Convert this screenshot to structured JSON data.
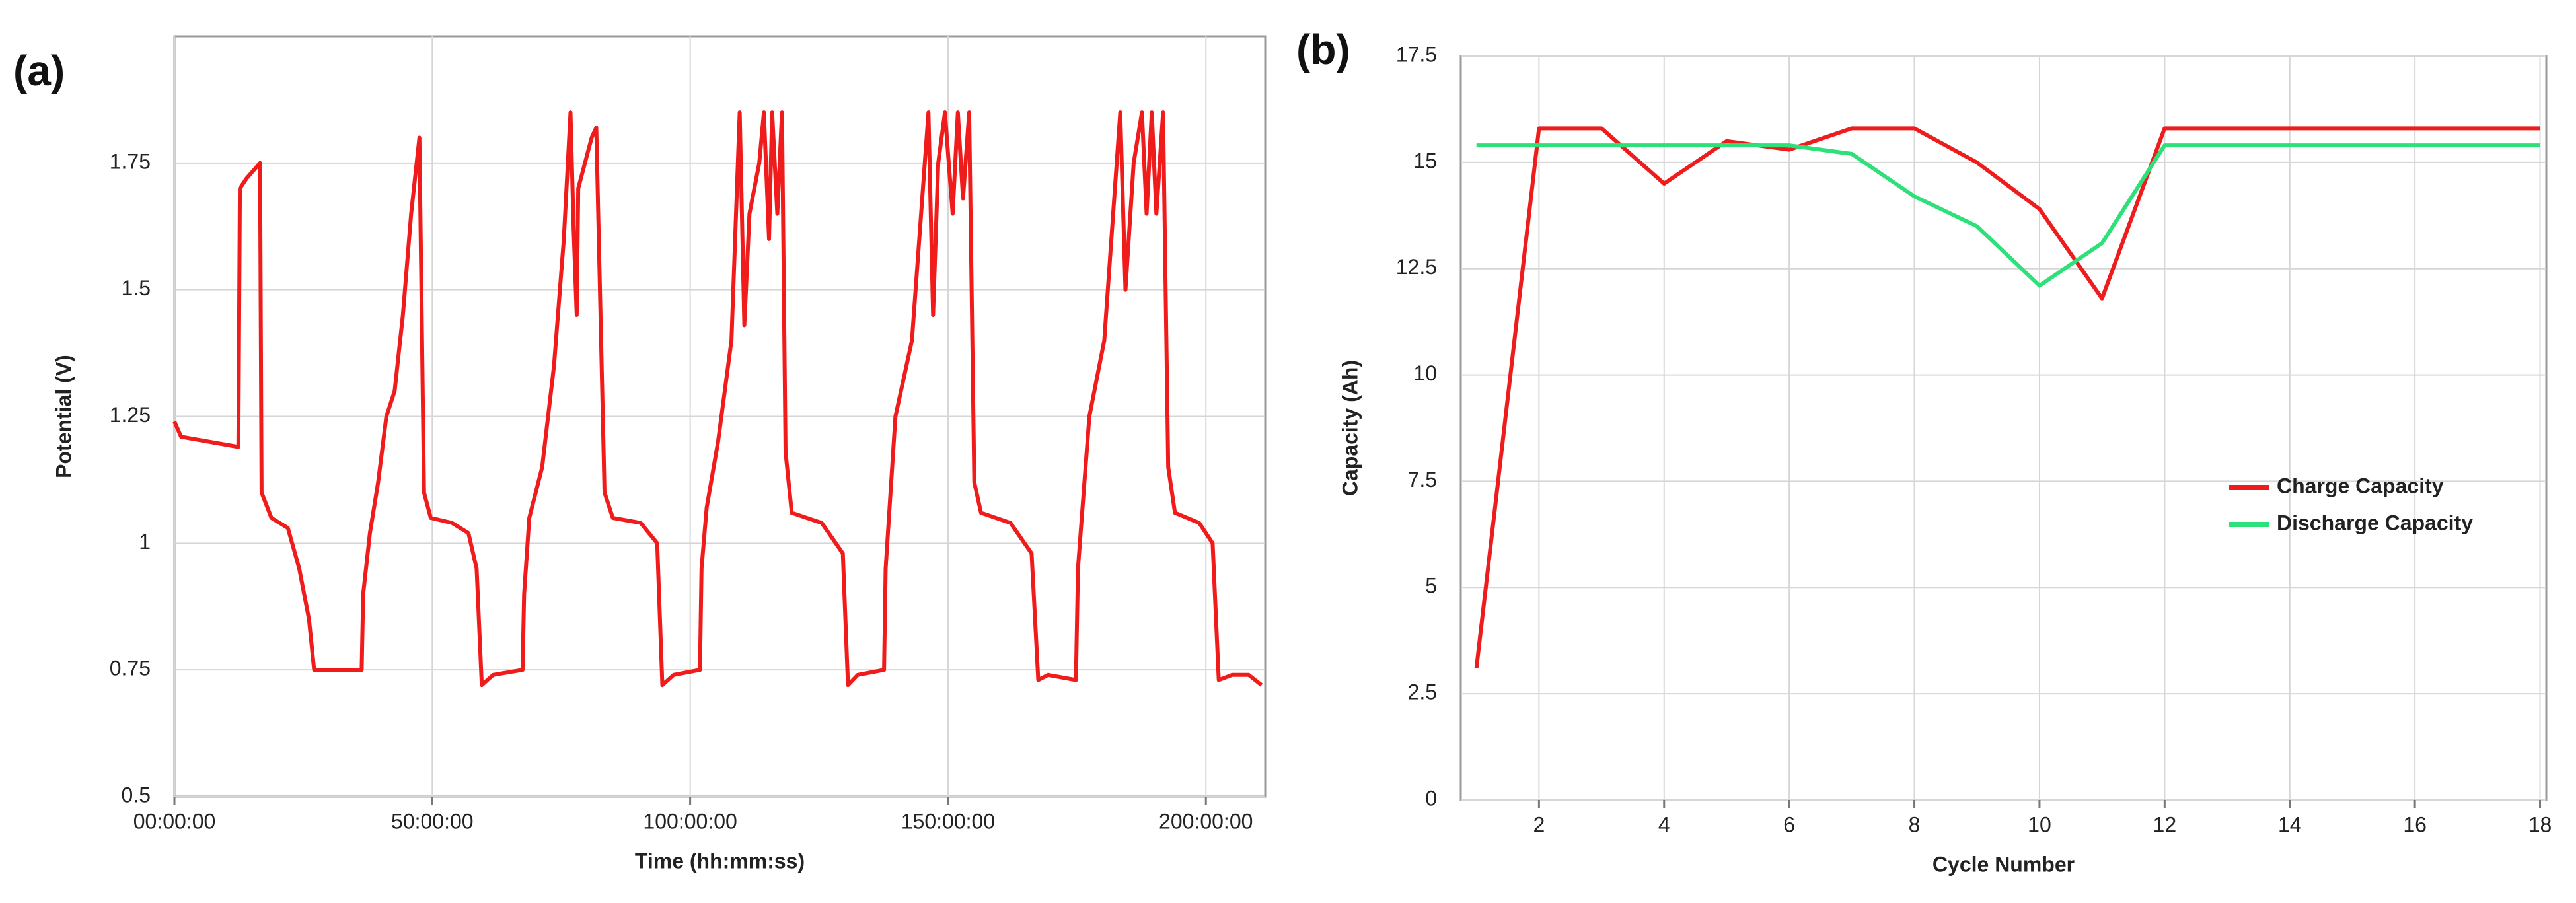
{
  "chart_data": [
    {
      "type": "line",
      "panel_label": "(a)",
      "xlabel": "Time (hh:mm:ss)",
      "ylabel": "Potential (V)",
      "color": "#f01c1c",
      "grid": true,
      "x": [
        0,
        1.3,
        12.4,
        12.7,
        14.0,
        16.6,
        16.9,
        18.8,
        22.0,
        24.2,
        26.1,
        27.1,
        29.9,
        36.3,
        36.6,
        37.9,
        39.5,
        41.1,
        42.7,
        44.3,
        45.9,
        47.5,
        48.4,
        49.7,
        53.8,
        57.0,
        58.6,
        59.6,
        61.8,
        67.5,
        67.8,
        68.8,
        71.3,
        73.6,
        75.5,
        76.8,
        77.4,
        78.0,
        78.3,
        80.9,
        81.8,
        83.4,
        85.0,
        90.4,
        93.6,
        94.6,
        96.8,
        101.9,
        102.2,
        103.2,
        105.4,
        108.0,
        109.6,
        110.5,
        111.5,
        113.4,
        114.3,
        115.3,
        115.9,
        116.9,
        117.8,
        118.5,
        119.7,
        125.5,
        129.6,
        130.6,
        132.5,
        137.6,
        137.9,
        139.8,
        143.0,
        146.2,
        147.1,
        148.1,
        149.4,
        150.9,
        151.9,
        152.9,
        154.1,
        155.1,
        156.4,
        162.1,
        166.2,
        167.5,
        169.4,
        174.8,
        175.2,
        177.4,
        180.3,
        183.4,
        184.4,
        186.0,
        187.6,
        188.5,
        189.5,
        190.4,
        191.7,
        192.7,
        194.0,
        198.7,
        201.3,
        202.5,
        205.1,
        208.3,
        210.8
      ],
      "values": [
        1.24,
        1.21,
        1.19,
        1.7,
        1.72,
        1.75,
        1.1,
        1.05,
        1.03,
        0.95,
        0.85,
        0.75,
        0.75,
        0.75,
        0.9,
        1.02,
        1.12,
        1.25,
        1.3,
        1.45,
        1.65,
        1.8,
        1.1,
        1.05,
        1.04,
        1.02,
        0.95,
        0.72,
        0.74,
        0.75,
        0.9,
        1.05,
        1.15,
        1.35,
        1.6,
        1.85,
        1.62,
        1.45,
        1.7,
        1.8,
        1.82,
        1.1,
        1.05,
        1.04,
        1.0,
        0.72,
        0.74,
        0.75,
        0.95,
        1.07,
        1.2,
        1.4,
        1.85,
        1.43,
        1.65,
        1.75,
        1.85,
        1.6,
        1.85,
        1.65,
        1.85,
        1.18,
        1.06,
        1.04,
        0.98,
        0.72,
        0.74,
        0.75,
        0.95,
        1.25,
        1.4,
        1.85,
        1.45,
        1.75,
        1.85,
        1.65,
        1.85,
        1.68,
        1.85,
        1.12,
        1.06,
        1.04,
        0.98,
        0.73,
        0.74,
        0.73,
        0.95,
        1.25,
        1.4,
        1.85,
        1.5,
        1.75,
        1.85,
        1.65,
        1.85,
        1.65,
        1.85,
        1.15,
        1.06,
        1.04,
        1.0,
        0.73,
        0.74,
        0.74,
        0.72
      ],
      "xlim": [
        0,
        211.5
      ],
      "ylim": [
        0.5,
        2.0
      ],
      "xticks": [
        {
          "value": 0,
          "label": "00:00:00"
        },
        {
          "value": 50,
          "label": "50:00:00"
        },
        {
          "value": 100,
          "label": "100:00:00"
        },
        {
          "value": 150,
          "label": "150:00:00"
        },
        {
          "value": 200,
          "label": "200:00:00"
        }
      ],
      "yticks": [
        0.5,
        0.75,
        1,
        1.25,
        1.5,
        1.75
      ]
    },
    {
      "type": "line",
      "panel_label": "(b)",
      "xlabel": "Cycle Number",
      "ylabel": "Capacity (Ah)",
      "grid": true,
      "legend_position": "right",
      "x": [
        1,
        2,
        3,
        4,
        5,
        6,
        7,
        8,
        9,
        10,
        11,
        12,
        13,
        14,
        15,
        16,
        17,
        18
      ],
      "series": [
        {
          "name": "Charge Capacity",
          "color": "#ee1c1c",
          "values": [
            3.1,
            15.8,
            15.8,
            14.5,
            15.5,
            15.3,
            15.8,
            15.8,
            15.0,
            13.9,
            11.8,
            15.8,
            15.8,
            15.8,
            15.8,
            15.8,
            15.8,
            15.8
          ]
        },
        {
          "name": "Discharge Capacity",
          "color": "#2ee07a",
          "values": [
            15.4,
            15.4,
            15.4,
            15.4,
            15.4,
            15.4,
            15.2,
            14.2,
            13.5,
            12.1,
            13.1,
            15.4,
            15.4,
            15.4,
            15.4,
            15.4,
            15.4,
            15.4
          ]
        }
      ],
      "xlim": [
        0.75,
        18.1
      ],
      "ylim": [
        0,
        17.5
      ],
      "xticks": [
        2,
        4,
        6,
        8,
        10,
        12,
        14,
        16,
        18
      ],
      "yticks": [
        0,
        2.5,
        5,
        7.5,
        10,
        12.5,
        15,
        17.5
      ]
    }
  ]
}
